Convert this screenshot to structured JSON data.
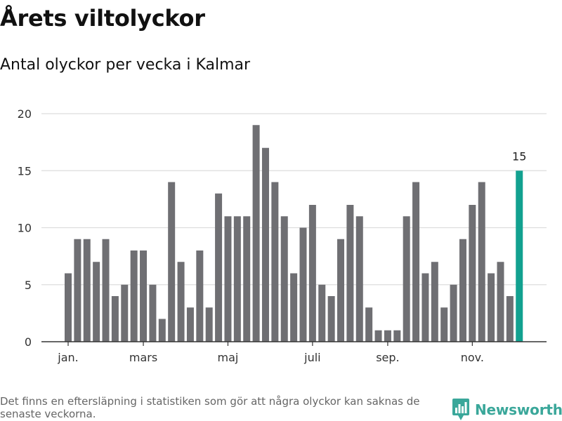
{
  "title": "Årets viltolyckor",
  "subtitle": "Antal olyckor per vecka i Kalmar",
  "footnote": "Det finns en eftersläpning i statistiken som gör att några olyckor kan saknas de senaste veckorna.",
  "brand": {
    "name": "Newsworthy",
    "icon": "bar-chart-logo-icon",
    "color": "#3aa79a"
  },
  "chart_data": {
    "type": "bar",
    "title": "",
    "xlabel": "",
    "ylabel": "",
    "ylim": [
      0,
      20
    ],
    "y_ticks": [
      0,
      5,
      10,
      15,
      20
    ],
    "grid": true,
    "legend": "none",
    "x": [
      1,
      2,
      3,
      4,
      5,
      6,
      7,
      8,
      9,
      10,
      11,
      12,
      13,
      14,
      15,
      16,
      17,
      18,
      19,
      20,
      21,
      22,
      23,
      24,
      25,
      26,
      27,
      28,
      29,
      30,
      31,
      32,
      33,
      34,
      35,
      36,
      37,
      38,
      39,
      40,
      41,
      42,
      43,
      44,
      45,
      46,
      47,
      48,
      49
    ],
    "values": [
      6,
      9,
      9,
      7,
      9,
      4,
      5,
      8,
      8,
      5,
      2,
      14,
      7,
      3,
      8,
      3,
      13,
      11,
      11,
      11,
      19,
      17,
      14,
      11,
      6,
      10,
      12,
      5,
      4,
      9,
      12,
      11,
      3,
      1,
      1,
      1,
      11,
      14,
      6,
      7,
      3,
      5,
      9,
      12,
      14,
      6,
      7,
      4,
      15
    ],
    "x_ticks": [
      {
        "label": "jan.",
        "x": 1
      },
      {
        "label": "mars",
        "x": 9
      },
      {
        "label": "maj",
        "x": 18
      },
      {
        "label": "juli",
        "x": 27
      },
      {
        "label": "sep.",
        "x": 35
      },
      {
        "label": "nov.",
        "x": 44
      }
    ],
    "highlight_last": true,
    "highlight_label": "15",
    "colors": {
      "bar": "#6f6f73",
      "highlight": "#12a190",
      "grid": "#dddddd",
      "axis": "#333333"
    }
  }
}
